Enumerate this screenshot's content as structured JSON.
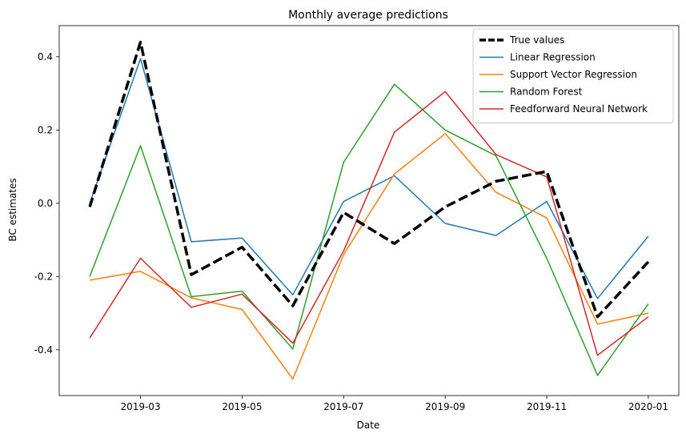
{
  "chart_data": {
    "type": "line",
    "title": "Monthly average predictions",
    "xlabel": "Date",
    "ylabel": "BC estimates",
    "x": [
      "2019-02",
      "2019-03",
      "2019-04",
      "2019-05",
      "2019-06",
      "2019-07",
      "2019-08",
      "2019-09",
      "2019-10",
      "2019-11",
      "2019-12",
      "2020-01"
    ],
    "x_tick_labels": [
      "2019-03",
      "2019-05",
      "2019-07",
      "2019-09",
      "2019-11",
      "2020-01"
    ],
    "y_ticks": [
      "-0.4",
      "-0.2",
      "0.0",
      "0.2",
      "0.4"
    ],
    "ylim": [
      -0.525,
      0.485
    ],
    "grid": false,
    "legend_position": "top-right",
    "series": [
      {
        "name": "True values",
        "color": "#000000",
        "dashed": true,
        "width": 3.5,
        "values": [
          -0.01,
          0.44,
          -0.195,
          -0.12,
          -0.28,
          -0.025,
          -0.11,
          -0.01,
          0.06,
          0.087,
          -0.31,
          -0.16
        ]
      },
      {
        "name": "Linear Regression",
        "color": "#1f77b4",
        "dashed": false,
        "width": 1.5,
        "values": [
          0.0,
          0.395,
          -0.105,
          -0.095,
          -0.25,
          0.005,
          0.075,
          -0.055,
          -0.088,
          0.005,
          -0.26,
          -0.09
        ]
      },
      {
        "name": "Support Vector Regression",
        "color": "#ff7f0e",
        "dashed": false,
        "width": 1.5,
        "values": [
          -0.21,
          -0.186,
          -0.258,
          -0.29,
          -0.48,
          -0.14,
          0.08,
          0.19,
          0.03,
          -0.04,
          -0.33,
          -0.3
        ]
      },
      {
        "name": "Random Forest",
        "color": "#2ca02c",
        "dashed": false,
        "width": 1.5,
        "values": [
          -0.2,
          0.157,
          -0.255,
          -0.24,
          -0.398,
          0.112,
          0.325,
          0.2,
          0.13,
          -0.15,
          -0.47,
          -0.275
        ]
      },
      {
        "name": "Feedforward Neural Network",
        "color": "#d62728",
        "dashed": false,
        "width": 1.5,
        "values": [
          -0.368,
          -0.15,
          -0.284,
          -0.248,
          -0.382,
          -0.13,
          0.194,
          0.305,
          0.133,
          0.072,
          -0.415,
          -0.31
        ]
      }
    ]
  }
}
